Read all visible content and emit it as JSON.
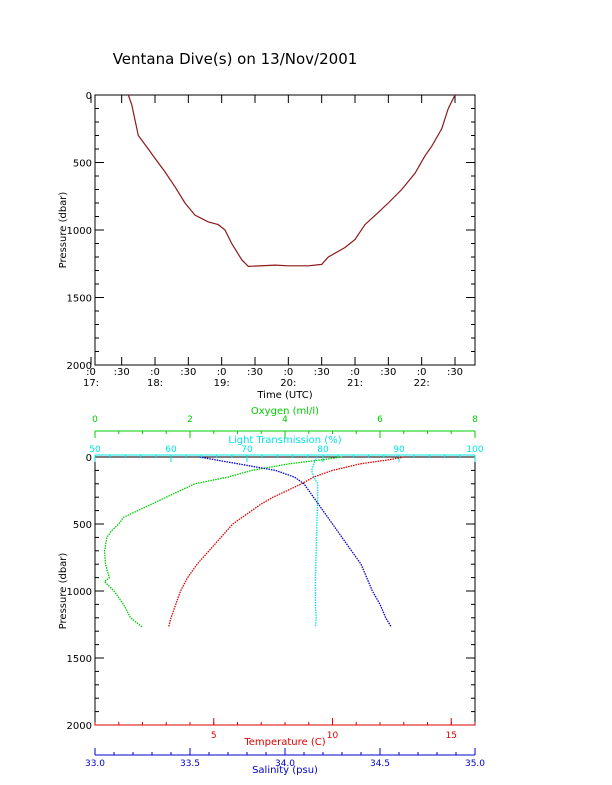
{
  "title": "Ventana Dive(s) on 13/Nov/2001",
  "colors": {
    "axis": "#000000",
    "depth_line": "#8b1a1a",
    "oxygen": "#00cc00",
    "transmission": "#00e5e5",
    "temperature": "#dd0000",
    "salinity": "#0000cc"
  },
  "chart_data": [
    {
      "type": "line",
      "name": "dive-depth-vs-time",
      "xlabel": "Time (UTC)",
      "ylabel": "Pressure (dbar)",
      "xlim": [
        17.1,
        22.8
      ],
      "ylim": [
        2000,
        0
      ],
      "y_ticks": [
        0,
        500,
        1000,
        1500,
        2000
      ],
      "x_ticks": [
        {
          "pos": 17.0,
          "top": ":0",
          "bottom": "17:"
        },
        {
          "pos": 17.5,
          "top": ":30",
          "bottom": ""
        },
        {
          "pos": 18.0,
          "top": ":0",
          "bottom": "18:"
        },
        {
          "pos": 18.5,
          "top": ":30",
          "bottom": ""
        },
        {
          "pos": 19.0,
          "top": ":0",
          "bottom": "19:"
        },
        {
          "pos": 19.5,
          "top": ":30",
          "bottom": ""
        },
        {
          "pos": 20.0,
          "top": ":0",
          "bottom": "20:"
        },
        {
          "pos": 20.5,
          "top": ":30",
          "bottom": ""
        },
        {
          "pos": 21.0,
          "top": ":0",
          "bottom": "21:"
        },
        {
          "pos": 21.5,
          "top": ":30",
          "bottom": ""
        },
        {
          "pos": 22.0,
          "top": ":0",
          "bottom": "22:"
        },
        {
          "pos": 22.5,
          "top": ":30",
          "bottom": ""
        }
      ],
      "series": [
        {
          "x": [
            17.6,
            17.65,
            17.75,
            17.9,
            18.0,
            18.15,
            18.3,
            18.45,
            18.6,
            18.8,
            18.95,
            19.05,
            19.15,
            19.3,
            19.4,
            19.8,
            20.0,
            20.3,
            20.5,
            20.6,
            20.85,
            21.0,
            21.15,
            21.35,
            21.5,
            21.7,
            21.9,
            22.05,
            22.15,
            22.3,
            22.4,
            22.5
          ],
          "y": [
            0,
            70,
            300,
            400,
            470,
            570,
            680,
            800,
            890,
            940,
            960,
            1000,
            1100,
            1220,
            1270,
            1260,
            1265,
            1265,
            1255,
            1200,
            1130,
            1070,
            960,
            870,
            800,
            700,
            580,
            450,
            380,
            250,
            100,
            0
          ]
        }
      ]
    },
    {
      "type": "scatter",
      "name": "profiles-vs-pressure",
      "ylabel": "Pressure (dbar)",
      "ylim": [
        2000,
        0
      ],
      "y_ticks": [
        0,
        500,
        1000,
        1500,
        2000
      ],
      "axes": {
        "oxygen": {
          "label": "Oxygen (ml/l)",
          "lim": [
            0,
            8
          ],
          "ticks": [
            "0",
            "2",
            "4",
            "6",
            "8"
          ],
          "tick_values": [
            0,
            2,
            4,
            6,
            8
          ]
        },
        "transmission": {
          "label": "Light Transmission (%)",
          "lim": [
            50,
            100
          ],
          "ticks": [
            "50",
            "60",
            "70",
            "80",
            "90",
            "100"
          ],
          "tick_values": [
            50,
            60,
            70,
            80,
            90,
            100
          ]
        },
        "temperature": {
          "label": "Temperature (C)",
          "lim": [
            0,
            16
          ],
          "ticks": [
            "5",
            "10",
            "15"
          ],
          "tick_values": [
            5,
            10,
            15
          ]
        },
        "salinity": {
          "label": "Salinity (psu)",
          "lim": [
            33.0,
            35.0
          ],
          "ticks": [
            "33.0",
            "33.5",
            "34.0",
            "34.5",
            "35.0"
          ],
          "tick_values": [
            33.0,
            33.5,
            34.0,
            34.5,
            35.0
          ]
        }
      },
      "series": [
        {
          "axis": "oxygen",
          "p": [
            0,
            20,
            50,
            100,
            150,
            200,
            250,
            300,
            400,
            450,
            500,
            550,
            600,
            700,
            800,
            900,
            930,
            1000,
            1100,
            1200,
            1270
          ],
          "v": [
            5.2,
            4.8,
            4.1,
            3.3,
            2.8,
            2.1,
            1.8,
            1.5,
            0.9,
            0.6,
            0.5,
            0.35,
            0.25,
            0.2,
            0.22,
            0.3,
            0.2,
            0.4,
            0.6,
            0.75,
            1.0
          ]
        },
        {
          "axis": "transmission",
          "p": [
            0,
            50,
            100,
            150,
            200,
            300,
            500,
            700,
            900,
            1000,
            1100,
            1200,
            1270
          ],
          "v": [
            79.2,
            78.8,
            78.5,
            78.8,
            79.3,
            79.3,
            79.2,
            79.1,
            79.0,
            79.0,
            79.0,
            79.1,
            79.0
          ]
        },
        {
          "axis": "temperature",
          "p": [
            0,
            20,
            50,
            100,
            150,
            200,
            250,
            300,
            350,
            400,
            450,
            500,
            600,
            700,
            800,
            900,
            1000,
            1100,
            1200,
            1270
          ],
          "v": [
            13.0,
            12.4,
            11.2,
            10.0,
            9.2,
            8.7,
            8.1,
            7.5,
            7.0,
            6.6,
            6.2,
            5.8,
            5.3,
            4.8,
            4.3,
            3.9,
            3.6,
            3.4,
            3.2,
            3.1
          ]
        },
        {
          "axis": "salinity",
          "p": [
            0,
            50,
            100,
            150,
            200,
            300,
            400,
            500,
            600,
            700,
            800,
            900,
            1000,
            1100,
            1200,
            1270
          ],
          "v": [
            33.55,
            33.75,
            33.95,
            34.05,
            34.1,
            34.15,
            34.2,
            34.25,
            34.3,
            34.35,
            34.4,
            34.43,
            34.46,
            34.5,
            34.53,
            34.56
          ]
        }
      ]
    }
  ]
}
